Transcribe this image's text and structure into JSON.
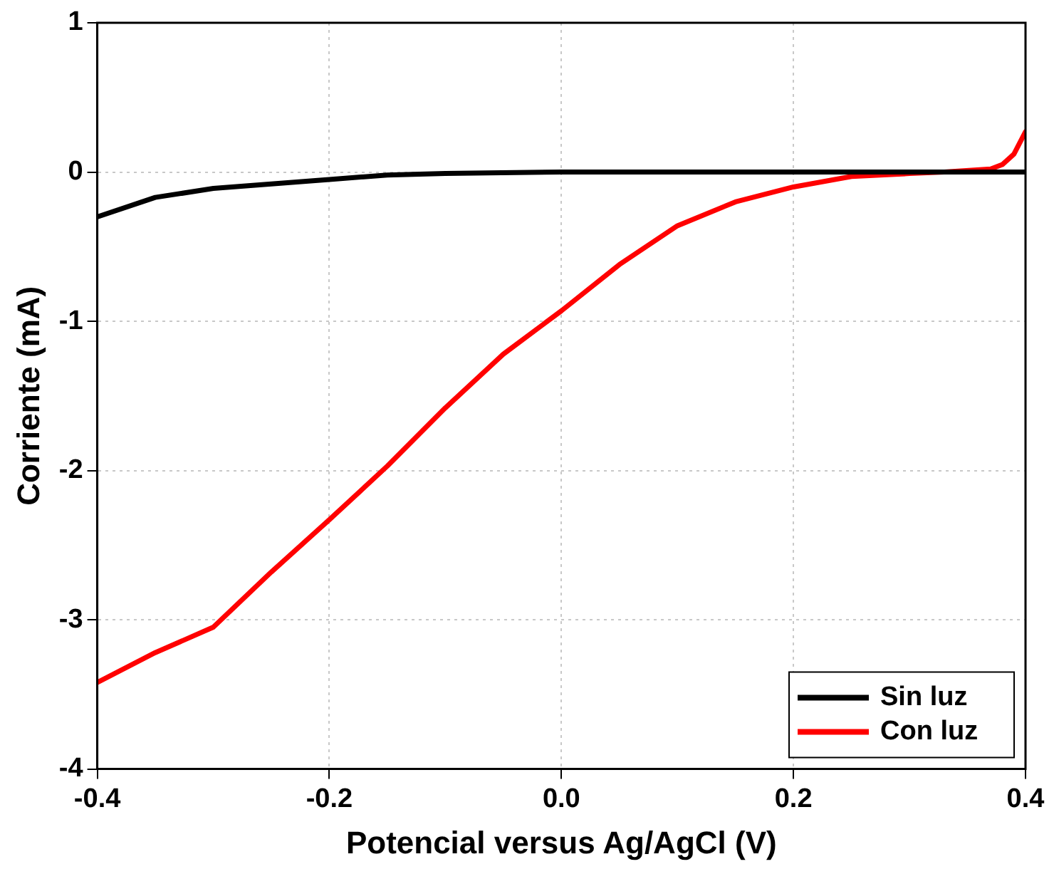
{
  "chart_data": {
    "type": "line",
    "xlabel": "Potencial versus Ag/AgCl (V)",
    "ylabel": "Corriente (mA)",
    "xlim": [
      -0.4,
      0.4
    ],
    "xticks": [
      -0.4,
      -0.2,
      {
        "value": 0,
        "label": "0.0"
      },
      0.2,
      0.4
    ],
    "ylim": [
      -4,
      1
    ],
    "yticks": [
      -4,
      -3,
      -2,
      -1,
      0,
      1
    ],
    "grid": true,
    "legend": "bottom right",
    "marker": "none",
    "line_style": "solid",
    "series": [
      {
        "name": "Sin luz",
        "color": "#000000",
        "x": [
          -0.4,
          -0.35,
          -0.3,
          -0.25,
          -0.2,
          -0.15,
          -0.1,
          0,
          0.1,
          0.2,
          0.3,
          0.4
        ],
        "values": [
          -0.3,
          -0.17,
          -0.11,
          -0.08,
          -0.05,
          -0.02,
          -0.01,
          0,
          0,
          0,
          0,
          0
        ]
      },
      {
        "name": "Con luz",
        "color": "#ff0000",
        "x": [
          -0.4,
          -0.35,
          -0.3,
          -0.25,
          -0.2,
          -0.15,
          -0.1,
          -0.05,
          0,
          0.05,
          0.1,
          0.15,
          0.2,
          0.25,
          0.3,
          0.33,
          0.37,
          0.38,
          0.39,
          0.4
        ],
        "values": [
          -3.42,
          -3.22,
          -3.05,
          -2.68,
          -2.33,
          -1.97,
          -1.58,
          -1.22,
          -0.93,
          -0.62,
          -0.36,
          -0.2,
          -0.1,
          -0.03,
          -0.01,
          0,
          0.02,
          0.05,
          0.12,
          0.27
        ]
      }
    ]
  }
}
